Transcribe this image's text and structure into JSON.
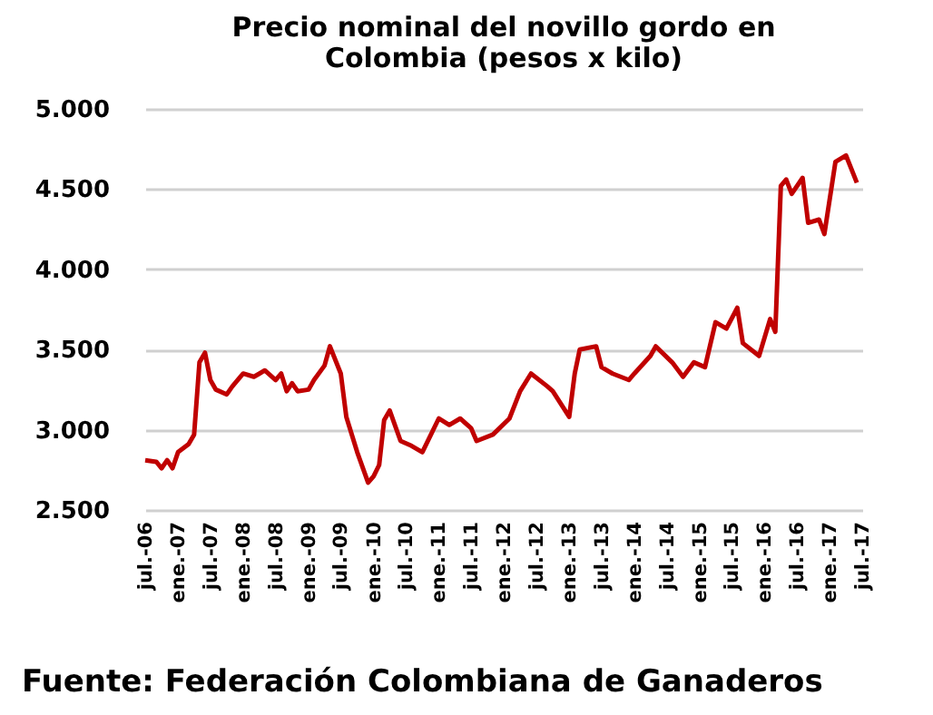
{
  "chart_data": {
    "type": "line",
    "title": "Precio nominal del novillo gordo en Colombia (pesos x kilo)",
    "annotations": [
      "Fuente: Federación Colombiana de Ganaderos"
    ],
    "x": [
      "2006-07",
      "2006-09",
      "2006-10",
      "2006-11",
      "2006-12",
      "2007-01",
      "2007-03",
      "2007-04",
      "2007-05",
      "2007-06",
      "2007-07",
      "2007-08",
      "2007-10",
      "2007-11",
      "2008-01",
      "2008-03",
      "2008-04",
      "2008-05",
      "2008-07",
      "2008-08",
      "2008-09",
      "2008-10",
      "2008-11",
      "2009-01",
      "2009-02",
      "2009-04",
      "2009-05",
      "2009-07",
      "2009-08",
      "2009-10",
      "2009-12",
      "2010-01",
      "2010-02",
      "2010-03",
      "2010-04",
      "2010-06",
      "2010-08",
      "2010-10",
      "2010-11",
      "2011-01",
      "2011-03",
      "2011-05",
      "2011-07",
      "2011-08",
      "2011-11",
      "2012-02",
      "2012-04",
      "2012-06",
      "2012-09",
      "2012-10",
      "2013-01",
      "2013-02",
      "2013-03",
      "2013-06",
      "2013-07",
      "2013-09",
      "2013-12",
      "2014-01",
      "2014-04",
      "2014-05",
      "2014-08",
      "2014-10",
      "2014-12",
      "2015-02",
      "2015-04",
      "2015-06",
      "2015-08",
      "2015-09",
      "2015-12",
      "2016-02",
      "2016-03",
      "2016-04",
      "2016-05",
      "2016-06",
      "2016-08",
      "2016-09",
      "2016-11",
      "2016-12",
      "2017-02",
      "2017-04",
      "2017-06"
    ],
    "series": [
      {
        "color": "#c00000",
        "values": [
          2810,
          2800,
          2760,
          2810,
          2760,
          2860,
          2910,
          2970,
          3420,
          3480,
          3310,
          3250,
          3220,
          3270,
          3350,
          3330,
          3350,
          3370,
          3310,
          3350,
          3240,
          3290,
          3240,
          3250,
          3310,
          3400,
          3520,
          3350,
          3080,
          2860,
          2670,
          2710,
          2780,
          3060,
          3120,
          2930,
          2900,
          2860,
          2930,
          3070,
          3030,
          3070,
          3010,
          2930,
          2970,
          3070,
          3240,
          3350,
          3270,
          3240,
          3080,
          3350,
          3500,
          3520,
          3390,
          3350,
          3310,
          3350,
          3460,
          3520,
          3420,
          3330,
          3420,
          3390,
          3670,
          3630,
          3760,
          3540,
          3460,
          3690,
          3610,
          4520,
          4560,
          4470,
          4570,
          4290,
          4310,
          4220,
          4670,
          4710,
          4540
        ]
      }
    ],
    "xlim": [
      "2006-07",
      "2017-07"
    ],
    "xticks": [
      {
        "value": "2006-07",
        "label": "jul.-06"
      },
      {
        "value": "2007-01",
        "label": "ene.-07"
      },
      {
        "value": "2007-07",
        "label": "jul.-07"
      },
      {
        "value": "2008-01",
        "label": "ene.-08"
      },
      {
        "value": "2008-07",
        "label": "jul.-08"
      },
      {
        "value": "2009-01",
        "label": "ene.-09"
      },
      {
        "value": "2009-07",
        "label": "jul.-09"
      },
      {
        "value": "2010-01",
        "label": "ene.-10"
      },
      {
        "value": "2010-07",
        "label": "jul.-10"
      },
      {
        "value": "2011-01",
        "label": "ene.-11"
      },
      {
        "value": "2011-07",
        "label": "jul.-11"
      },
      {
        "value": "2012-01",
        "label": "ene.-12"
      },
      {
        "value": "2012-07",
        "label": "jul.-12"
      },
      {
        "value": "2013-01",
        "label": "ene.-13"
      },
      {
        "value": "2013-07",
        "label": "jul.-13"
      },
      {
        "value": "2014-01",
        "label": "ene.-14"
      },
      {
        "value": "2014-07",
        "label": "jul.-14"
      },
      {
        "value": "2015-01",
        "label": "ene.-15"
      },
      {
        "value": "2015-07",
        "label": "jul.-15"
      },
      {
        "value": "2016-01",
        "label": "ene.-16"
      },
      {
        "value": "2016-07",
        "label": "jul.-16"
      },
      {
        "value": "2017-01",
        "label": "ene.-17"
      },
      {
        "value": "2017-07",
        "label": "jul.-17"
      }
    ],
    "ylim": [
      2500,
      5000
    ],
    "yticks": [
      {
        "value": 2500,
        "label": "2.500"
      },
      {
        "value": 3000,
        "label": "3.000"
      },
      {
        "value": 3500,
        "label": "3.500"
      },
      {
        "value": 4000,
        "label": "4.000"
      },
      {
        "value": 4500,
        "label": "4.500"
      },
      {
        "value": 5000,
        "label": "5.000"
      }
    ],
    "grid": "y",
    "legend": false,
    "marker": "none",
    "line_style": "solid"
  }
}
